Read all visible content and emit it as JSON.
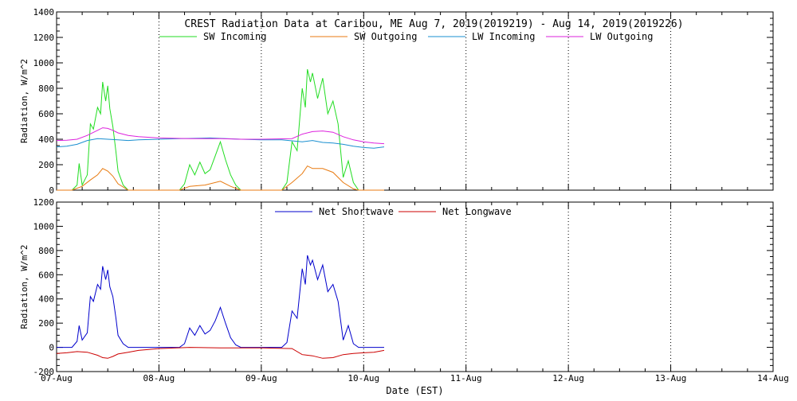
{
  "chart_data": [
    {
      "type": "line",
      "title": "CREST Radiation Data at Caribou, ME   Aug  7, 2019(2019219) - Aug 14, 2019(2019226)",
      "ylabel": "Radiation, W/m^2",
      "xlabel": "",
      "ylim": [
        0,
        1400
      ],
      "yticks": [
        0,
        200,
        400,
        600,
        800,
        1000,
        1200,
        1400
      ],
      "xlim": [
        0,
        7
      ],
      "grid": true,
      "legend_placement": "top",
      "series": [
        {
          "name": "SW Incoming",
          "color": "#22dd22",
          "values": [
            [
              0,
              0
            ],
            [
              0.15,
              0
            ],
            [
              0.2,
              40
            ],
            [
              0.22,
              210
            ],
            [
              0.25,
              40
            ],
            [
              0.3,
              120
            ],
            [
              0.33,
              520
            ],
            [
              0.36,
              480
            ],
            [
              0.4,
              650
            ],
            [
              0.43,
              600
            ],
            [
              0.45,
              850
            ],
            [
              0.48,
              700
            ],
            [
              0.5,
              820
            ],
            [
              0.52,
              640
            ],
            [
              0.55,
              500
            ],
            [
              0.58,
              300
            ],
            [
              0.6,
              150
            ],
            [
              0.65,
              40
            ],
            [
              0.7,
              0
            ],
            [
              1.2,
              0
            ],
            [
              1.25,
              50
            ],
            [
              1.3,
              200
            ],
            [
              1.35,
              120
            ],
            [
              1.4,
              220
            ],
            [
              1.45,
              130
            ],
            [
              1.5,
              160
            ],
            [
              1.55,
              270
            ],
            [
              1.6,
              380
            ],
            [
              1.65,
              240
            ],
            [
              1.7,
              120
            ],
            [
              1.75,
              40
            ],
            [
              1.8,
              0
            ],
            [
              2.2,
              0
            ],
            [
              2.25,
              60
            ],
            [
              2.3,
              380
            ],
            [
              2.35,
              310
            ],
            [
              2.4,
              800
            ],
            [
              2.43,
              650
            ],
            [
              2.45,
              950
            ],
            [
              2.48,
              850
            ],
            [
              2.5,
              920
            ],
            [
              2.55,
              720
            ],
            [
              2.6,
              880
            ],
            [
              2.65,
              600
            ],
            [
              2.7,
              700
            ],
            [
              2.75,
              520
            ],
            [
              2.8,
              100
            ],
            [
              2.85,
              230
            ],
            [
              2.9,
              60
            ],
            [
              2.95,
              0
            ],
            [
              3.2,
              0
            ]
          ]
        },
        {
          "name": "SW Outgoing",
          "color": "#e87a10",
          "values": [
            [
              0,
              0
            ],
            [
              0.15,
              0
            ],
            [
              0.25,
              30
            ],
            [
              0.33,
              80
            ],
            [
              0.4,
              120
            ],
            [
              0.45,
              170
            ],
            [
              0.5,
              150
            ],
            [
              0.55,
              110
            ],
            [
              0.6,
              50
            ],
            [
              0.7,
              0
            ],
            [
              1.2,
              0
            ],
            [
              1.3,
              30
            ],
            [
              1.45,
              40
            ],
            [
              1.6,
              70
            ],
            [
              1.7,
              30
            ],
            [
              1.8,
              0
            ],
            [
              2.2,
              0
            ],
            [
              2.3,
              60
            ],
            [
              2.4,
              130
            ],
            [
              2.45,
              190
            ],
            [
              2.5,
              170
            ],
            [
              2.6,
              170
            ],
            [
              2.7,
              140
            ],
            [
              2.8,
              60
            ],
            [
              2.9,
              10
            ],
            [
              2.95,
              0
            ],
            [
              3.2,
              0
            ]
          ]
        },
        {
          "name": "LW Incoming",
          "color": "#1a8fd0",
          "values": [
            [
              0,
              340
            ],
            [
              0.1,
              345
            ],
            [
              0.2,
              360
            ],
            [
              0.3,
              390
            ],
            [
              0.4,
              405
            ],
            [
              0.5,
              400
            ],
            [
              0.6,
              395
            ],
            [
              0.7,
              390
            ],
            [
              0.8,
              395
            ],
            [
              1.0,
              400
            ],
            [
              1.2,
              405
            ],
            [
              1.5,
              410
            ],
            [
              1.8,
              400
            ],
            [
              2.0,
              395
            ],
            [
              2.2,
              395
            ],
            [
              2.4,
              380
            ],
            [
              2.5,
              390
            ],
            [
              2.6,
              375
            ],
            [
              2.7,
              370
            ],
            [
              2.8,
              360
            ],
            [
              2.9,
              345
            ],
            [
              3.0,
              335
            ],
            [
              3.1,
              330
            ],
            [
              3.2,
              340
            ]
          ]
        },
        {
          "name": "LW Outgoing",
          "color": "#dd22dd",
          "values": [
            [
              0,
              390
            ],
            [
              0.1,
              392
            ],
            [
              0.2,
              400
            ],
            [
              0.3,
              430
            ],
            [
              0.4,
              470
            ],
            [
              0.45,
              490
            ],
            [
              0.5,
              485
            ],
            [
              0.55,
              470
            ],
            [
              0.6,
              450
            ],
            [
              0.7,
              430
            ],
            [
              0.8,
              420
            ],
            [
              1.0,
              410
            ],
            [
              1.3,
              405
            ],
            [
              1.6,
              405
            ],
            [
              1.8,
              400
            ],
            [
              2.0,
              400
            ],
            [
              2.3,
              405
            ],
            [
              2.4,
              440
            ],
            [
              2.5,
              460
            ],
            [
              2.6,
              465
            ],
            [
              2.7,
              455
            ],
            [
              2.8,
              420
            ],
            [
              2.9,
              395
            ],
            [
              3.0,
              380
            ],
            [
              3.1,
              370
            ],
            [
              3.2,
              365
            ]
          ]
        }
      ]
    },
    {
      "type": "line",
      "ylabel": "Radiation, W/m^2",
      "xlabel": "Date (EST)",
      "ylim": [
        -200,
        1200
      ],
      "yticks": [
        -200,
        0,
        200,
        400,
        600,
        800,
        1000,
        1200
      ],
      "xlim": [
        0,
        7
      ],
      "xticks": [
        "07-Aug",
        "08-Aug",
        "09-Aug",
        "10-Aug",
        "11-Aug",
        "12-Aug",
        "13-Aug",
        "14-Aug"
      ],
      "grid": true,
      "legend_placement": "top",
      "series": [
        {
          "name": "Net Shortwave",
          "color": "#0000cc",
          "values": [
            [
              0,
              0
            ],
            [
              0.15,
              0
            ],
            [
              0.2,
              50
            ],
            [
              0.22,
              180
            ],
            [
              0.25,
              60
            ],
            [
              0.3,
              120
            ],
            [
              0.33,
              420
            ],
            [
              0.36,
              380
            ],
            [
              0.4,
              520
            ],
            [
              0.43,
              480
            ],
            [
              0.45,
              670
            ],
            [
              0.48,
              560
            ],
            [
              0.5,
              640
            ],
            [
              0.52,
              500
            ],
            [
              0.55,
              420
            ],
            [
              0.58,
              240
            ],
            [
              0.6,
              100
            ],
            [
              0.65,
              30
            ],
            [
              0.7,
              0
            ],
            [
              1.2,
              0
            ],
            [
              1.25,
              30
            ],
            [
              1.3,
              160
            ],
            [
              1.35,
              100
            ],
            [
              1.4,
              180
            ],
            [
              1.45,
              110
            ],
            [
              1.5,
              140
            ],
            [
              1.55,
              220
            ],
            [
              1.6,
              330
            ],
            [
              1.65,
              200
            ],
            [
              1.7,
              80
            ],
            [
              1.75,
              20
            ],
            [
              1.8,
              0
            ],
            [
              2.2,
              0
            ],
            [
              2.25,
              40
            ],
            [
              2.3,
              300
            ],
            [
              2.35,
              240
            ],
            [
              2.4,
              650
            ],
            [
              2.43,
              520
            ],
            [
              2.45,
              760
            ],
            [
              2.48,
              680
            ],
            [
              2.5,
              720
            ],
            [
              2.55,
              560
            ],
            [
              2.6,
              680
            ],
            [
              2.65,
              460
            ],
            [
              2.7,
              520
            ],
            [
              2.75,
              380
            ],
            [
              2.8,
              60
            ],
            [
              2.85,
              180
            ],
            [
              2.9,
              30
            ],
            [
              2.95,
              0
            ],
            [
              3.2,
              0
            ]
          ]
        },
        {
          "name": "Net Longwave",
          "color": "#cc0000",
          "values": [
            [
              0,
              -50
            ],
            [
              0.1,
              -45
            ],
            [
              0.2,
              -35
            ],
            [
              0.3,
              -40
            ],
            [
              0.4,
              -65
            ],
            [
              0.45,
              -85
            ],
            [
              0.5,
              -90
            ],
            [
              0.55,
              -75
            ],
            [
              0.6,
              -55
            ],
            [
              0.7,
              -40
            ],
            [
              0.8,
              -25
            ],
            [
              1.0,
              -10
            ],
            [
              1.3,
              0
            ],
            [
              1.6,
              -5
            ],
            [
              1.8,
              -5
            ],
            [
              2.0,
              -5
            ],
            [
              2.3,
              -10
            ],
            [
              2.4,
              -60
            ],
            [
              2.5,
              -70
            ],
            [
              2.6,
              -90
            ],
            [
              2.7,
              -85
            ],
            [
              2.8,
              -60
            ],
            [
              2.9,
              -50
            ],
            [
              3.0,
              -45
            ],
            [
              3.1,
              -40
            ],
            [
              3.2,
              -25
            ]
          ]
        }
      ]
    }
  ]
}
